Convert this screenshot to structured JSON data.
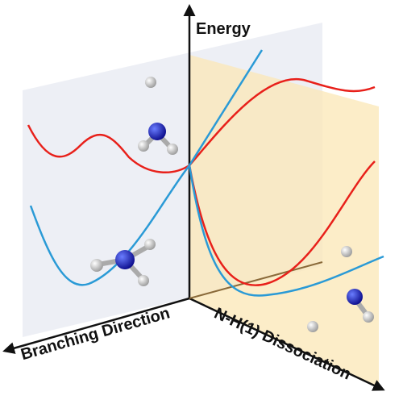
{
  "axes": {
    "vertical": "Energy",
    "left": "Branching Direction",
    "right": "N-H(1) Dissociation"
  }
}
